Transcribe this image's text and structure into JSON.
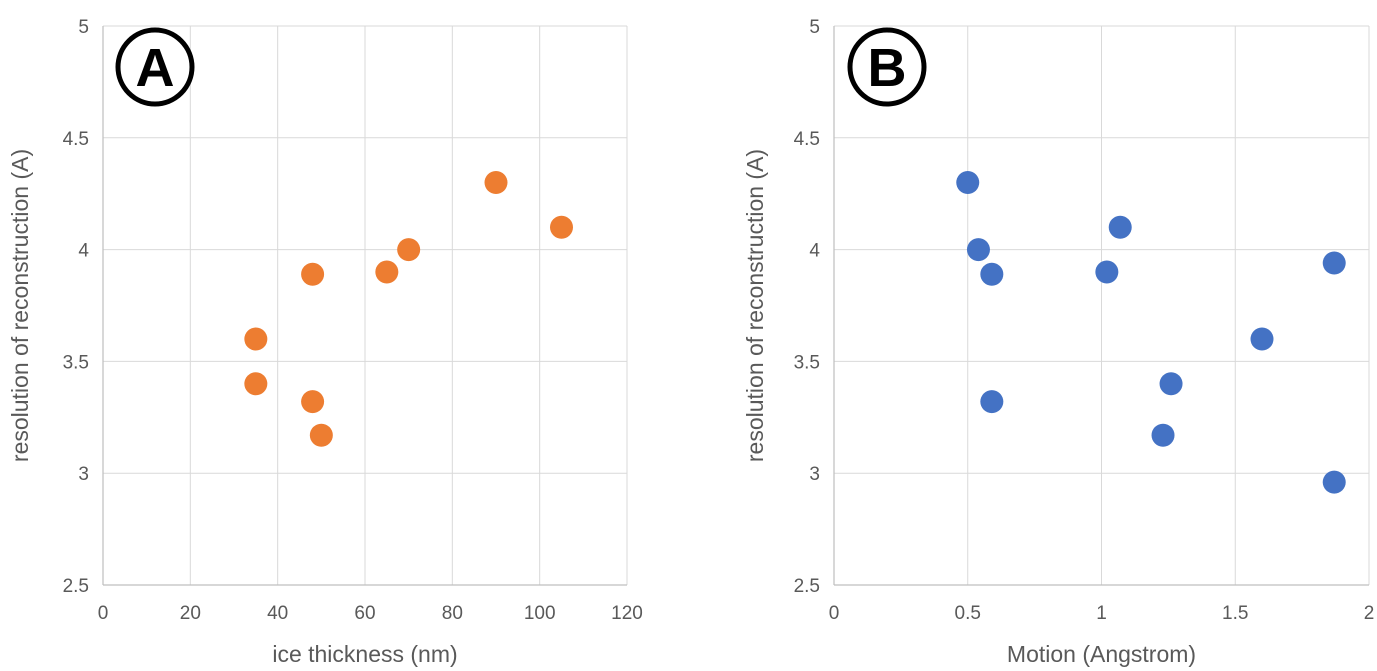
{
  "chart_data": [
    {
      "type": "scatter",
      "panel_label": "A",
      "xlabel": "ice thickness (nm)",
      "ylabel": "resolution of reconstruction (A)",
      "xlim": [
        0,
        120
      ],
      "ylim": [
        2.5,
        5
      ],
      "xticks": [
        0,
        20,
        40,
        60,
        80,
        100,
        120
      ],
      "yticks": [
        2.5,
        3,
        3.5,
        4,
        4.5,
        5
      ],
      "grid": true,
      "color": "#ED7D31",
      "series": [
        {
          "points": [
            {
              "x": 35,
              "y": 3.6
            },
            {
              "x": 35,
              "y": 3.4
            },
            {
              "x": 48,
              "y": 3.89
            },
            {
              "x": 48,
              "y": 3.32
            },
            {
              "x": 50,
              "y": 3.17
            },
            {
              "x": 65,
              "y": 3.9
            },
            {
              "x": 70,
              "y": 4.0
            },
            {
              "x": 90,
              "y": 4.3
            },
            {
              "x": 105,
              "y": 4.1
            }
          ]
        }
      ]
    },
    {
      "type": "scatter",
      "panel_label": "B",
      "xlabel": "Motion (Angstrom)",
      "ylabel": "resolution of reconstruction (A)",
      "xlim": [
        0,
        2
      ],
      "ylim": [
        2.5,
        5
      ],
      "xticks": [
        0,
        0.5,
        1,
        1.5,
        2
      ],
      "yticks": [
        2.5,
        3,
        3.5,
        4,
        4.5,
        5
      ],
      "grid": true,
      "color": "#4472C4",
      "series": [
        {
          "points": [
            {
              "x": 0.5,
              "y": 4.3
            },
            {
              "x": 0.54,
              "y": 4.0
            },
            {
              "x": 0.59,
              "y": 3.89
            },
            {
              "x": 0.59,
              "y": 3.32
            },
            {
              "x": 1.02,
              "y": 3.9
            },
            {
              "x": 1.07,
              "y": 4.1
            },
            {
              "x": 1.23,
              "y": 3.17
            },
            {
              "x": 1.26,
              "y": 3.4
            },
            {
              "x": 1.6,
              "y": 3.6
            },
            {
              "x": 1.87,
              "y": 3.94
            },
            {
              "x": 1.87,
              "y": 2.96
            }
          ]
        }
      ]
    }
  ]
}
